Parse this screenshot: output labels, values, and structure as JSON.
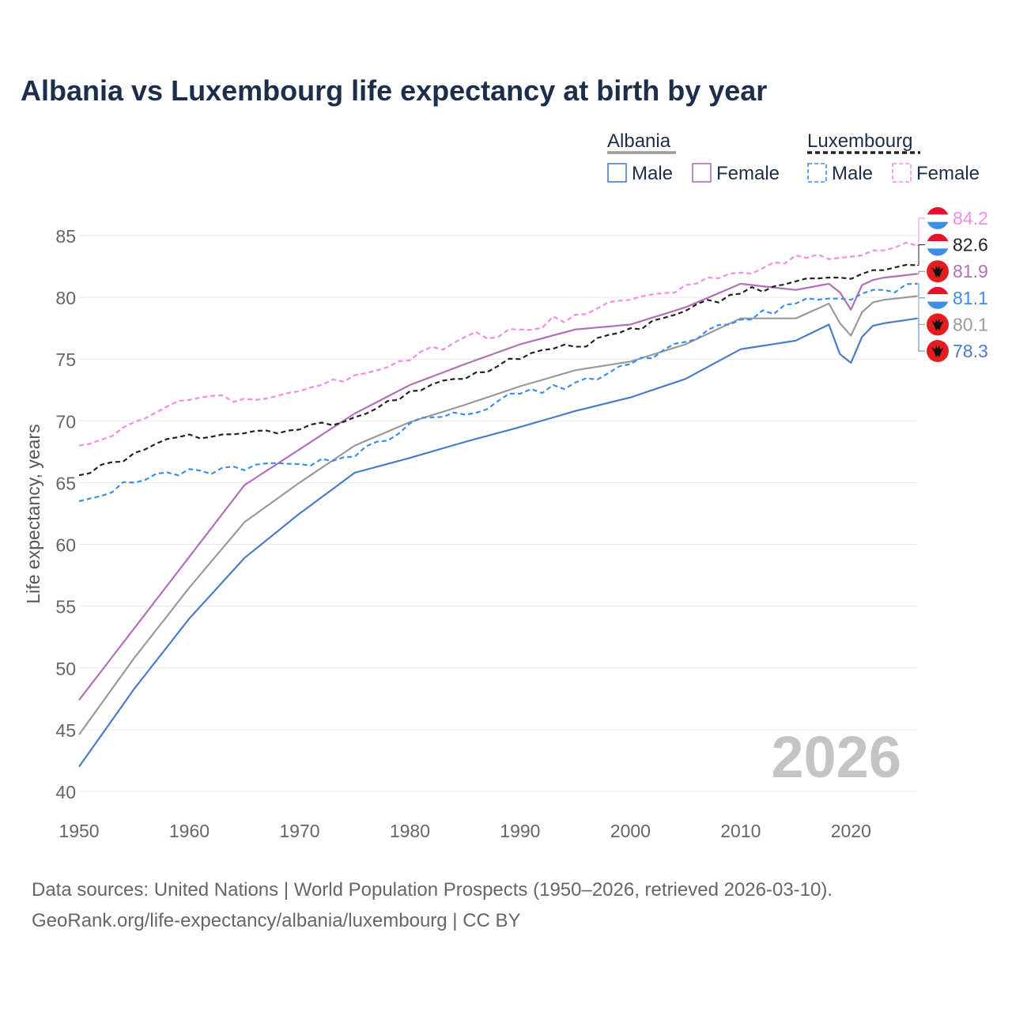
{
  "title": "Albania vs Luxembourg life expectancy at birth by year",
  "source_line1": "Data sources: United Nations | World Population Prospects (1950–2026, retrieved 2026-03-10).",
  "source_line2": "GeoRank.org/life-expectancy/albania/luxembourg | CC BY",
  "chart_data": {
    "type": "line",
    "title": "Albania vs Luxembourg life expectancy at birth by year",
    "xlabel": "",
    "ylabel": "Life expectancy, years",
    "xlim": [
      1950,
      2026
    ],
    "ylim": [
      40,
      85
    ],
    "xticks": [
      1950,
      1960,
      1970,
      1980,
      1990,
      2000,
      2010,
      2020
    ],
    "yticks": [
      40,
      45,
      50,
      55,
      60,
      65,
      70,
      75,
      80,
      85
    ],
    "year_watermark": "2026",
    "legend": {
      "groups": [
        {
          "name": "Albania",
          "style": "solid",
          "items": [
            "Male",
            "Female"
          ]
        },
        {
          "name": "Luxembourg",
          "style": "dashed",
          "items": [
            "Male",
            "Female"
          ]
        }
      ]
    },
    "x_keys": [
      1950,
      1955,
      1960,
      1965,
      1970,
      1975,
      1980,
      1985,
      1990,
      1995,
      2000,
      2005,
      2010,
      2015,
      2018,
      2019,
      2020,
      2021,
      2022,
      2023,
      2026
    ],
    "series": [
      {
        "name": "Albania Male",
        "country": "Albania",
        "sex": "Male",
        "color": "#4a7cc7",
        "dashed": false,
        "values": [
          42.0,
          48.3,
          54.0,
          58.9,
          62.5,
          65.8,
          67.0,
          68.3,
          69.5,
          70.8,
          71.9,
          73.4,
          75.8,
          76.5,
          77.8,
          75.4,
          74.7,
          76.8,
          77.7,
          77.9,
          78.3
        ],
        "end_label": "78.3",
        "flag": "albania"
      },
      {
        "name": "Albania Female",
        "country": "Albania",
        "sex": "Female",
        "color": "#b070b8",
        "dashed": false,
        "values": [
          47.4,
          53.2,
          59.0,
          64.8,
          67.7,
          70.6,
          72.9,
          74.6,
          76.2,
          77.4,
          77.8,
          79.2,
          81.1,
          80.6,
          81.1,
          80.4,
          79.0,
          81.0,
          81.4,
          81.6,
          81.9
        ],
        "end_label": "81.9",
        "flag": "albania"
      },
      {
        "name": "Albania Total",
        "country": "Albania",
        "sex": "Total",
        "color": "#9a9a9a",
        "dashed": false,
        "values": [
          44.6,
          50.8,
          56.5,
          61.8,
          65.0,
          68.0,
          69.9,
          71.3,
          72.8,
          74.1,
          74.8,
          76.2,
          78.3,
          78.3,
          79.5,
          77.9,
          76.9,
          78.8,
          79.6,
          79.8,
          80.1
        ],
        "end_label": "80.1",
        "flag": "albania"
      },
      {
        "name": "Luxembourg Male",
        "country": "Luxembourg",
        "sex": "Male",
        "color": "#3d8ee8",
        "dashed": true,
        "values": [
          63.5,
          65.0,
          66.1,
          66.0,
          66.5,
          67.1,
          69.8,
          70.5,
          72.2,
          73.1,
          74.6,
          76.4,
          78.2,
          79.5,
          79.9,
          79.9,
          79.8,
          80.3,
          80.6,
          80.6,
          81.1
        ],
        "end_label": "81.1",
        "flag": "luxembourg"
      },
      {
        "name": "Luxembourg Female",
        "country": "Luxembourg",
        "sex": "Female",
        "color": "#f58ae8",
        "dashed": true,
        "values": [
          68.0,
          69.9,
          71.7,
          71.8,
          72.4,
          73.7,
          74.9,
          76.8,
          77.4,
          78.6,
          79.8,
          81.0,
          82.0,
          83.4,
          83.1,
          83.2,
          83.3,
          83.4,
          83.8,
          83.8,
          84.2
        ],
        "end_label": "84.2",
        "flag": "luxembourg"
      },
      {
        "name": "Luxembourg Total",
        "country": "Luxembourg",
        "sex": "Total",
        "color": "#222222",
        "dashed": true,
        "values": [
          65.6,
          67.4,
          68.9,
          69.0,
          69.3,
          70.3,
          72.4,
          73.4,
          75.0,
          76.0,
          77.5,
          78.9,
          80.3,
          81.3,
          81.6,
          81.6,
          81.5,
          81.9,
          82.2,
          82.2,
          82.6
        ],
        "end_label": "82.6",
        "flag": "luxembourg"
      }
    ]
  }
}
